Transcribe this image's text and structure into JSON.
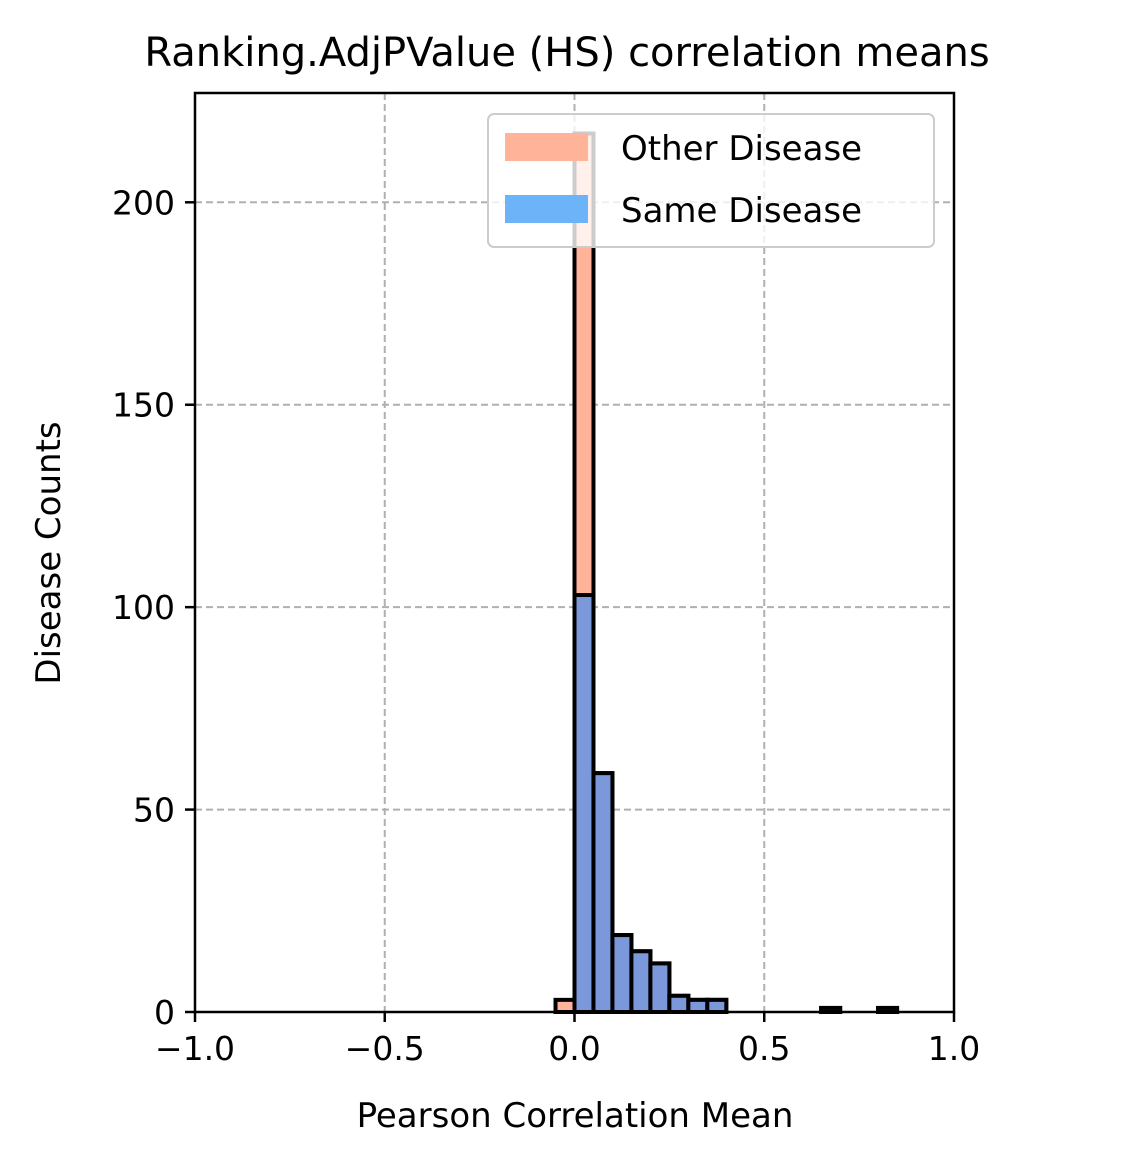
{
  "chart_data": {
    "type": "bar",
    "title": "Ranking.AdjPValue (HS) correlation means",
    "xlabel": "Pearson Correlation Mean",
    "ylabel": "Disease Counts",
    "xlim": [
      -1.0,
      1.0
    ],
    "ylim": [
      0,
      227
    ],
    "xticks": [
      -1.0,
      -0.5,
      0.0,
      0.5,
      1.0
    ],
    "xtick_labels": [
      "−1.0",
      "−0.5",
      "0.0",
      "0.5",
      "1.0"
    ],
    "yticks": [
      0,
      50,
      100,
      150,
      200
    ],
    "ytick_labels": [
      "0",
      "50",
      "100",
      "150",
      "200"
    ],
    "grid": true,
    "grid_style": "dashed",
    "legend_position": "upper right",
    "bin_width": 0.05,
    "series": [
      {
        "name": "Other Disease",
        "color": "#FFB399",
        "bins": [
          {
            "x0": -0.05,
            "x1": 0.0,
            "count": 3
          },
          {
            "x0": 0.0,
            "x1": 0.05,
            "count": 217
          },
          {
            "x0": 0.05,
            "x1": 0.1,
            "count": 59
          },
          {
            "x0": 0.1,
            "x1": 0.15,
            "count": 19
          },
          {
            "x0": 0.15,
            "x1": 0.2,
            "count": 15
          },
          {
            "x0": 0.2,
            "x1": 0.25,
            "count": 12
          },
          {
            "x0": 0.25,
            "x1": 0.3,
            "count": 4
          },
          {
            "x0": 0.3,
            "x1": 0.35,
            "count": 3
          },
          {
            "x0": 0.35,
            "x1": 0.4,
            "count": 3
          },
          {
            "x0": 0.65,
            "x1": 0.7,
            "count": 1
          },
          {
            "x0": 0.8,
            "x1": 0.85,
            "count": 1
          }
        ]
      },
      {
        "name": "Same Disease",
        "color": "#6CB4F7",
        "bins": [
          {
            "x0": 0.0,
            "x1": 0.05,
            "count": 103
          },
          {
            "x0": 0.05,
            "x1": 0.1,
            "count": 59
          },
          {
            "x0": 0.1,
            "x1": 0.15,
            "count": 19
          },
          {
            "x0": 0.15,
            "x1": 0.2,
            "count": 15
          },
          {
            "x0": 0.2,
            "x1": 0.25,
            "count": 12
          },
          {
            "x0": 0.25,
            "x1": 0.3,
            "count": 4
          },
          {
            "x0": 0.3,
            "x1": 0.35,
            "count": 3
          },
          {
            "x0": 0.35,
            "x1": 0.4,
            "count": 3
          },
          {
            "x0": 0.65,
            "x1": 0.7,
            "count": 1
          },
          {
            "x0": 0.8,
            "x1": 0.85,
            "count": 1
          }
        ]
      }
    ],
    "overlap_color": "#7B98DB"
  }
}
